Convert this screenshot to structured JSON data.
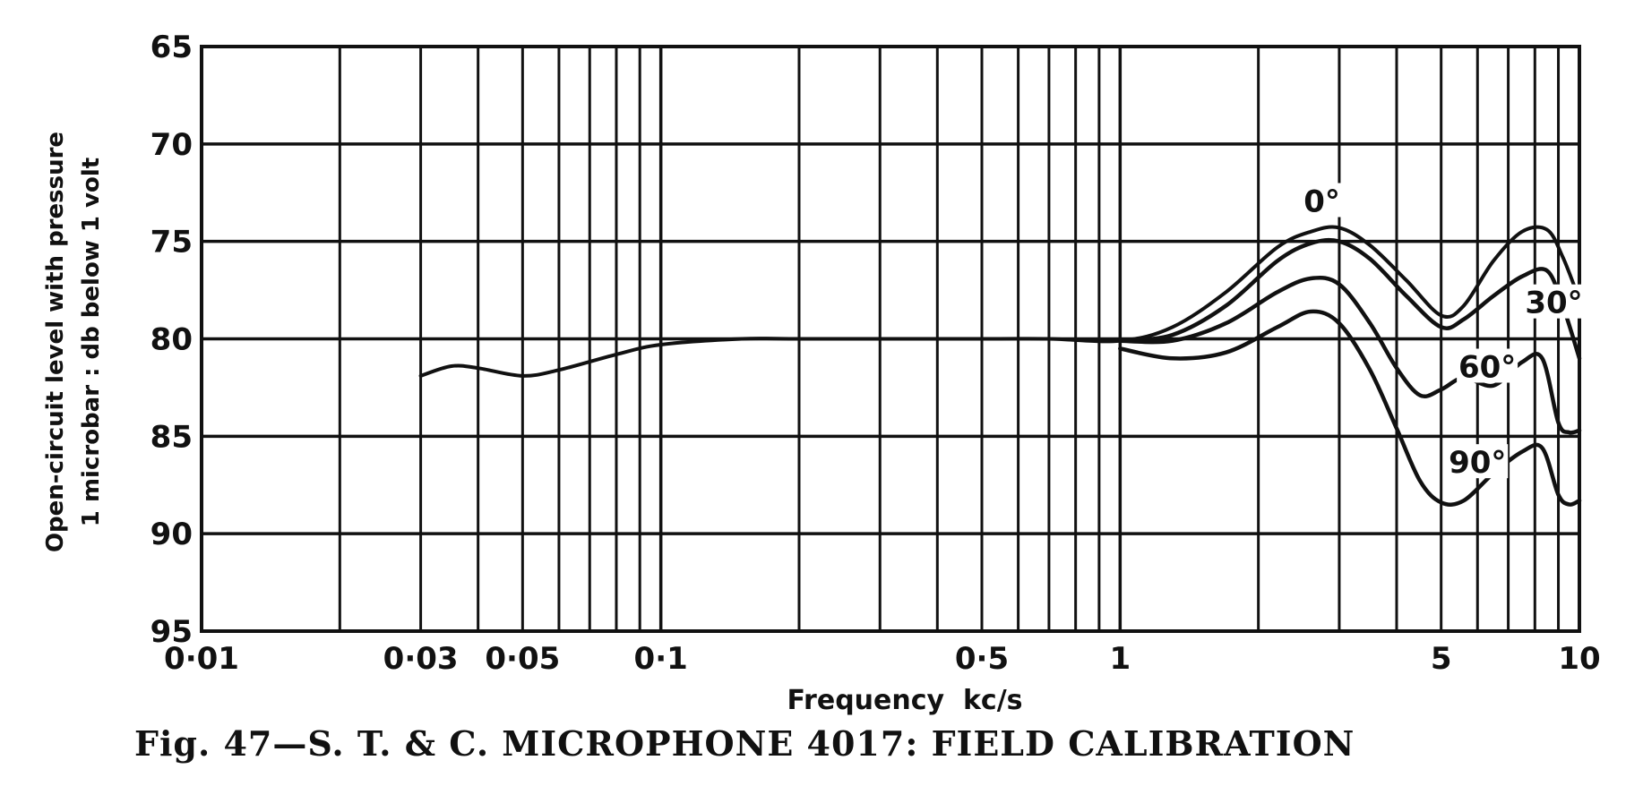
{
  "chart_data": {
    "type": "line",
    "title": "",
    "ylabel_line1": "Open-circuit level with pressure",
    "ylabel_line2": "1 microbar : db below 1 volt",
    "xlabel": "Frequency  kc/s",
    "x_scale": "log",
    "xlim": [
      0.01,
      10
    ],
    "ylim": [
      65,
      95
    ],
    "y_inverted": true,
    "grid": true,
    "x_tick_labels": [
      {
        "value": 0.01,
        "label": "0·01"
      },
      {
        "value": 0.03,
        "label": "0·03"
      },
      {
        "value": 0.05,
        "label": "0·05"
      },
      {
        "value": 0.1,
        "label": "0·1"
      },
      {
        "value": 0.5,
        "label": "0·5"
      },
      {
        "value": 1,
        "label": "1"
      },
      {
        "value": 5,
        "label": "5"
      },
      {
        "value": 10,
        "label": "10"
      }
    ],
    "y_ticks": [
      65,
      70,
      75,
      80,
      85,
      90,
      95
    ],
    "series": [
      {
        "name": "0°",
        "x": [
          0.03,
          0.035,
          0.04,
          0.05,
          0.06,
          0.08,
          0.1,
          0.15,
          0.2,
          0.5,
          0.7,
          1.0,
          1.3,
          1.7,
          2.2,
          2.6,
          3.0,
          3.5,
          4.2,
          5.0,
          5.6,
          6.5,
          7.5,
          8.5,
          9.2,
          10
        ],
        "y": [
          81.9,
          81.4,
          81.5,
          81.9,
          81.6,
          80.8,
          80.3,
          80.0,
          80.0,
          80.0,
          80.0,
          80.1,
          79.4,
          77.6,
          75.3,
          74.5,
          74.3,
          75.2,
          77.0,
          78.8,
          78.3,
          76.0,
          74.5,
          74.4,
          75.8,
          78.0
        ]
      },
      {
        "name": "30°",
        "x": [
          1.0,
          1.3,
          1.7,
          2.2,
          2.6,
          3.0,
          3.5,
          4.2,
          5.0,
          5.6,
          6.5,
          7.5,
          8.5,
          9.2,
          10
        ],
        "y": [
          80.1,
          79.8,
          78.3,
          76.0,
          75.1,
          75.0,
          75.9,
          77.8,
          79.4,
          79.0,
          77.8,
          76.8,
          76.5,
          78.3,
          81.0
        ]
      },
      {
        "name": "60°",
        "x": [
          1.0,
          1.3,
          1.7,
          2.2,
          2.6,
          3.0,
          3.5,
          4.0,
          4.5,
          5.0,
          5.6,
          6.5,
          7.5,
          8.3,
          9.0,
          9.5,
          10
        ],
        "y": [
          80.1,
          80.1,
          79.2,
          77.6,
          76.9,
          77.2,
          79.2,
          81.5,
          82.9,
          82.6,
          82.0,
          82.4,
          81.2,
          81.0,
          84.3,
          84.8,
          84.7
        ]
      },
      {
        "name": "90°",
        "x": [
          1.0,
          1.3,
          1.7,
          2.2,
          2.6,
          3.0,
          3.5,
          4.0,
          4.5,
          5.0,
          5.6,
          6.5,
          7.5,
          8.3,
          9.0,
          9.5,
          10
        ],
        "y": [
          80.5,
          81.0,
          80.7,
          79.4,
          78.6,
          79.2,
          81.6,
          84.6,
          87.3,
          88.4,
          88.3,
          86.9,
          85.8,
          85.6,
          88.0,
          88.5,
          88.3
        ]
      }
    ],
    "curve_labels": [
      {
        "text": "0°",
        "x": 2.75,
        "y": 73.2
      },
      {
        "text": "30°",
        "x": 8.8,
        "y": 78.4
      },
      {
        "text": "60°",
        "x": 6.3,
        "y": 81.7
      },
      {
        "text": "90°",
        "x": 6.0,
        "y": 86.6
      }
    ]
  },
  "caption": {
    "text": "Fig. 47—S. T. & C. MICROPHONE 4017:  FIELD CALIBRATION"
  }
}
